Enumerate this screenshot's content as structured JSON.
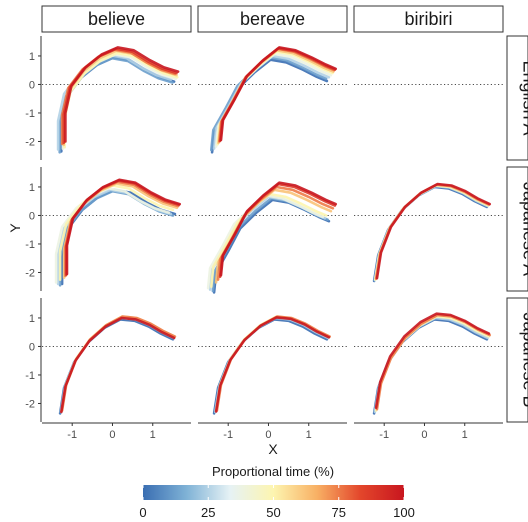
{
  "chart_data": {
    "type": "line",
    "xlabel": "X",
    "ylabel": "Y",
    "xlim": [
      -1.75,
      1.95
    ],
    "ylim": [
      -2.65,
      1.7
    ],
    "x_ticks": [
      -1,
      0,
      1
    ],
    "y_ticks": [
      -2,
      -1,
      0,
      1
    ],
    "reference_line_y": 0,
    "columns": [
      "believe",
      "bereave",
      "biribiri"
    ],
    "rows": [
      "English A",
      "Japanese A",
      "Japanese B"
    ],
    "legend": {
      "title": "Proportional time (%)",
      "ticks": [
        0,
        25,
        50,
        75,
        100
      ],
      "colors": [
        "#3a6eb2",
        "#7fb2d6",
        "#e6f2f5",
        "#fdf5b0",
        "#f8b064",
        "#e3462b",
        "#c8161f"
      ]
    },
    "shapes": {
      "peak_first": {
        "x": [
          -1.25,
          -1.25,
          -1.1,
          -0.75,
          -0.35,
          0.05,
          0.45,
          0.85,
          1.2,
          1.55
        ],
        "y": [
          -2.3,
          -1.3,
          -0.35,
          0.3,
          0.75,
          1.0,
          0.9,
          0.55,
          0.3,
          0.15
        ]
      },
      "peak_second": {
        "x": [
          -1.3,
          -1.25,
          -0.95,
          -0.65,
          -0.25,
          0.15,
          0.55,
          0.95,
          1.3,
          1.55
        ],
        "y": [
          -2.3,
          -1.6,
          -0.85,
          -0.05,
          0.5,
          0.95,
          0.85,
          0.6,
          0.35,
          0.2
        ]
      },
      "arc": {
        "x": [
          -1.3,
          -1.2,
          -0.95,
          -0.6,
          -0.2,
          0.2,
          0.55,
          0.9,
          1.2,
          1.5
        ],
        "y": [
          -2.3,
          -1.4,
          -0.5,
          0.2,
          0.7,
          1.0,
          0.95,
          0.75,
          0.5,
          0.3
        ]
      }
    },
    "panels": [
      {
        "row": "English A",
        "col": "believe",
        "lines": [
          {
            "t": 0,
            "shape": "peak_first",
            "dx": -0.02,
            "dy": -0.05
          },
          {
            "t": 12,
            "shape": "peak_first",
            "dx": -0.06,
            "dy": -0.08
          },
          {
            "t": 25,
            "shape": "peak_first",
            "dx": -0.1,
            "dy": 0.02
          },
          {
            "t": 38,
            "shape": "peak_first",
            "dx": 0.02,
            "dy": 0.05
          },
          {
            "t": 50,
            "shape": "peak_first",
            "dx": 0.06,
            "dy": 0.1
          },
          {
            "t": 62,
            "shape": "peak_first",
            "dx": 0.04,
            "dy": 0.18
          },
          {
            "t": 75,
            "shape": "peak_first",
            "dx": 0.0,
            "dy": 0.22
          },
          {
            "t": 88,
            "shape": "peak_first",
            "dx": 0.04,
            "dy": 0.25
          },
          {
            "t": 100,
            "shape": "peak_first",
            "dx": 0.08,
            "dy": 0.3
          }
        ]
      },
      {
        "row": "English A",
        "col": "bereave",
        "lines": [
          {
            "t": 0,
            "shape": "peak_second",
            "dx": -0.1,
            "dy": -0.08
          },
          {
            "t": 12,
            "shape": "peak_second",
            "dx": -0.12,
            "dy": 0.0
          },
          {
            "t": 25,
            "shape": "peak_second",
            "dx": -0.05,
            "dy": 0.05
          },
          {
            "t": 38,
            "shape": "peak_second",
            "dx": 0.0,
            "dy": 0.12
          },
          {
            "t": 50,
            "shape": "peak_second",
            "dx": 0.04,
            "dy": 0.2
          },
          {
            "t": 62,
            "shape": "peak_second",
            "dx": 0.06,
            "dy": 0.25
          },
          {
            "t": 75,
            "shape": "peak_second",
            "dx": 0.08,
            "dy": 0.3
          },
          {
            "t": 88,
            "shape": "peak_second",
            "dx": 0.1,
            "dy": 0.32
          },
          {
            "t": 100,
            "shape": "peak_second",
            "dx": 0.12,
            "dy": 0.35
          }
        ]
      },
      {
        "row": "English A",
        "col": "biribiri",
        "lines": []
      },
      {
        "row": "Japanese A",
        "col": "believe",
        "lines": [
          {
            "t": 0,
            "shape": "peak_first",
            "dx": 0.0,
            "dy": -0.1
          },
          {
            "t": 12,
            "shape": "peak_first",
            "dx": -0.05,
            "dy": -0.15
          },
          {
            "t": 25,
            "shape": "peak_first",
            "dx": -0.1,
            "dy": -0.1
          },
          {
            "t": 38,
            "shape": "peak_first",
            "dx": -0.15,
            "dy": -0.05
          },
          {
            "t": 50,
            "shape": "peak_first",
            "dx": -0.05,
            "dy": 0.05
          },
          {
            "t": 62,
            "shape": "peak_first",
            "dx": 0.05,
            "dy": 0.12
          },
          {
            "t": 75,
            "shape": "peak_first",
            "dx": 0.08,
            "dy": 0.18
          },
          {
            "t": 88,
            "shape": "peak_first",
            "dx": 0.1,
            "dy": 0.22
          },
          {
            "t": 100,
            "shape": "peak_first",
            "dx": 0.12,
            "dy": 0.25
          }
        ]
      },
      {
        "row": "Japanese A",
        "col": "bereave",
        "lines": [
          {
            "t": 0,
            "shape": "peak_second",
            "dx": -0.05,
            "dy": -0.4
          },
          {
            "t": 12,
            "shape": "peak_second",
            "dx": -0.08,
            "dy": -0.35
          },
          {
            "t": 25,
            "shape": "peak_second",
            "dx": -0.15,
            "dy": -0.3
          },
          {
            "t": 38,
            "shape": "peak_second",
            "dx": -0.2,
            "dy": -0.25
          },
          {
            "t": 50,
            "shape": "peak_second",
            "dx": -0.12,
            "dy": -0.2
          },
          {
            "t": 62,
            "shape": "peak_second",
            "dx": 0.0,
            "dy": -0.05
          },
          {
            "t": 75,
            "shape": "peak_second",
            "dx": 0.05,
            "dy": 0.05
          },
          {
            "t": 88,
            "shape": "peak_second",
            "dx": 0.1,
            "dy": 0.15
          },
          {
            "t": 100,
            "shape": "peak_second",
            "dx": 0.12,
            "dy": 0.2
          }
        ]
      },
      {
        "row": "Japanese A",
        "col": "biribiri",
        "lines": [
          {
            "t": 0,
            "shape": "arc",
            "dx": 0.05,
            "dy": 0.0
          },
          {
            "t": 25,
            "shape": "arc",
            "dx": 0.07,
            "dy": 0.03
          },
          {
            "t": 50,
            "shape": "arc",
            "dx": 0.08,
            "dy": 0.05
          },
          {
            "t": 75,
            "shape": "arc",
            "dx": 0.1,
            "dy": 0.08
          },
          {
            "t": 100,
            "shape": "arc",
            "dx": 0.12,
            "dy": 0.1
          }
        ]
      },
      {
        "row": "Japanese B",
        "col": "believe",
        "lines": [
          {
            "t": 0,
            "shape": "arc",
            "dx": 0.0,
            "dy": -0.05
          },
          {
            "t": 25,
            "shape": "arc",
            "dx": 0.02,
            "dy": 0.0
          },
          {
            "t": 50,
            "shape": "arc",
            "dx": 0.04,
            "dy": 0.05
          },
          {
            "t": 75,
            "shape": "arc",
            "dx": 0.05,
            "dy": 0.05
          },
          {
            "t": 100,
            "shape": "arc",
            "dx": 0.03,
            "dy": 0.0
          }
        ]
      },
      {
        "row": "Japanese B",
        "col": "bereave",
        "lines": [
          {
            "t": 0,
            "shape": "arc",
            "dx": -0.05,
            "dy": -0.05
          },
          {
            "t": 25,
            "shape": "arc",
            "dx": -0.02,
            "dy": 0.0
          },
          {
            "t": 50,
            "shape": "arc",
            "dx": 0.0,
            "dy": 0.05
          },
          {
            "t": 75,
            "shape": "arc",
            "dx": 0.02,
            "dy": 0.05
          },
          {
            "t": 100,
            "shape": "arc",
            "dx": 0.0,
            "dy": 0.02
          }
        ]
      },
      {
        "row": "Japanese B",
        "col": "biribiri",
        "lines": [
          {
            "t": 0,
            "shape": "arc",
            "dx": 0.05,
            "dy": -0.05
          },
          {
            "t": 25,
            "shape": "arc",
            "dx": 0.07,
            "dy": 0.0
          },
          {
            "t": 50,
            "shape": "arc",
            "dx": 0.1,
            "dy": 0.05
          },
          {
            "t": 75,
            "shape": "arc",
            "dx": 0.12,
            "dy": 0.1
          },
          {
            "t": 100,
            "shape": "arc",
            "dx": 0.1,
            "dy": 0.15
          }
        ]
      }
    ]
  }
}
